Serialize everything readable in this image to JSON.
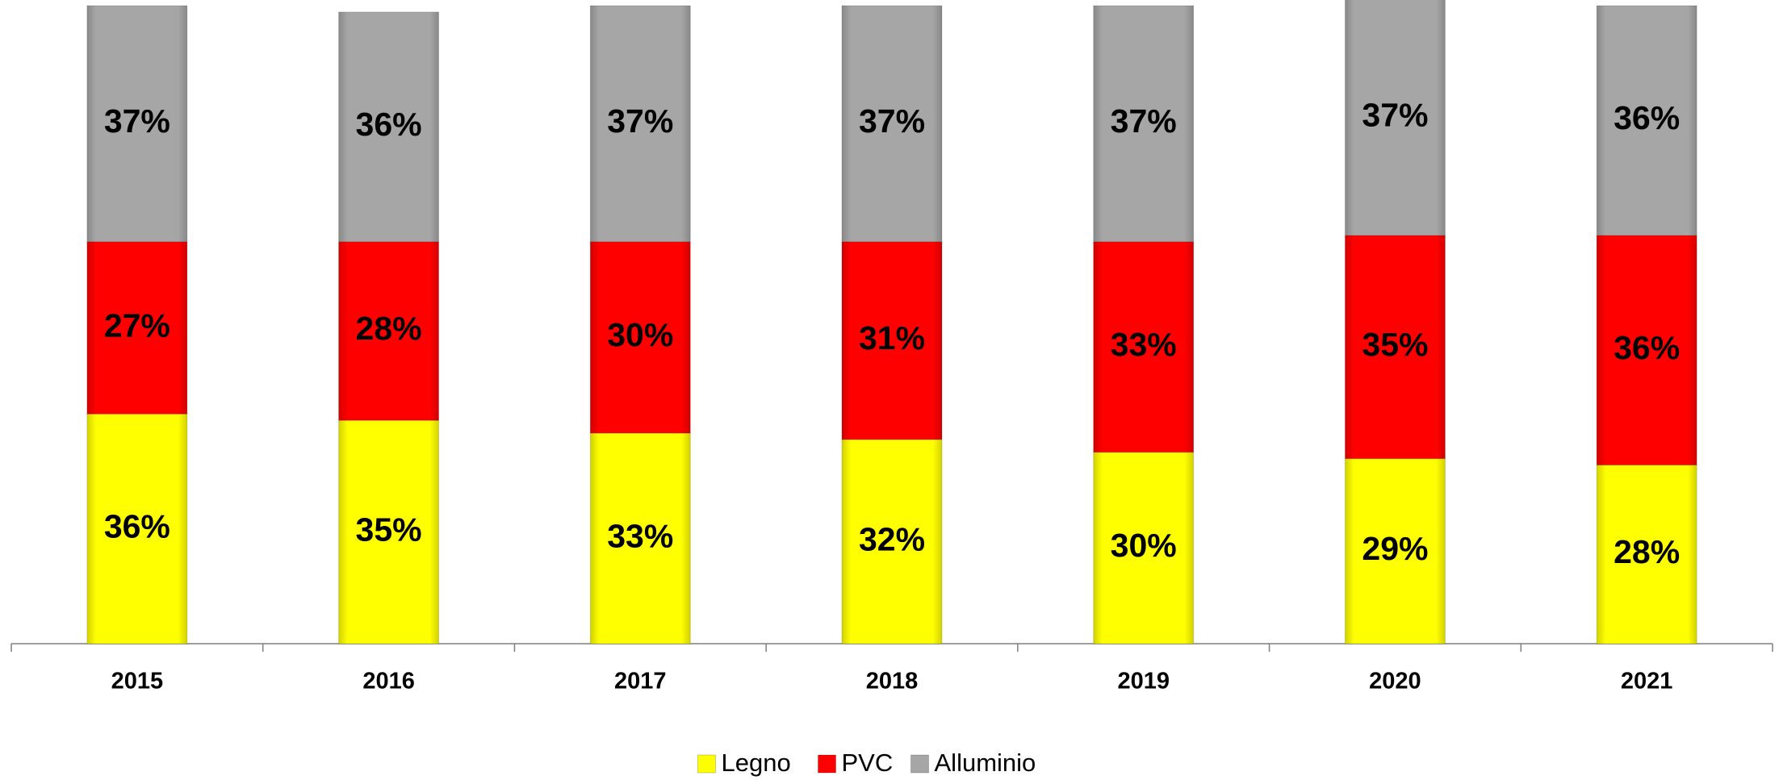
{
  "chart_data": {
    "type": "stacked_bar",
    "categories": [
      "2015",
      "2016",
      "2017",
      "2018",
      "2019",
      "2020",
      "2021"
    ],
    "series": [
      {
        "name": "Legno",
        "color": "#ffff00",
        "values": [
          36,
          35,
          33,
          32,
          30,
          29,
          28
        ],
        "value_labels": [
          "36%",
          "35%",
          "33%",
          "32%",
          "30%",
          "29%",
          "28%"
        ]
      },
      {
        "name": "PVC",
        "color": "#ff0000",
        "values": [
          27,
          28,
          30,
          31,
          33,
          35,
          36
        ],
        "value_labels": [
          "27%",
          "28%",
          "30%",
          "31%",
          "33%",
          "35%",
          "36%"
        ]
      },
      {
        "name": "Alluminio",
        "color": "#a6a6a6",
        "values": [
          37,
          36,
          37,
          37,
          37,
          37,
          36
        ],
        "value_labels": [
          "37%",
          "36%",
          "37%",
          "37%",
          "37%",
          "37%",
          "36%"
        ]
      }
    ],
    "ylim": [
      0,
      100
    ],
    "legend": "bottom"
  }
}
